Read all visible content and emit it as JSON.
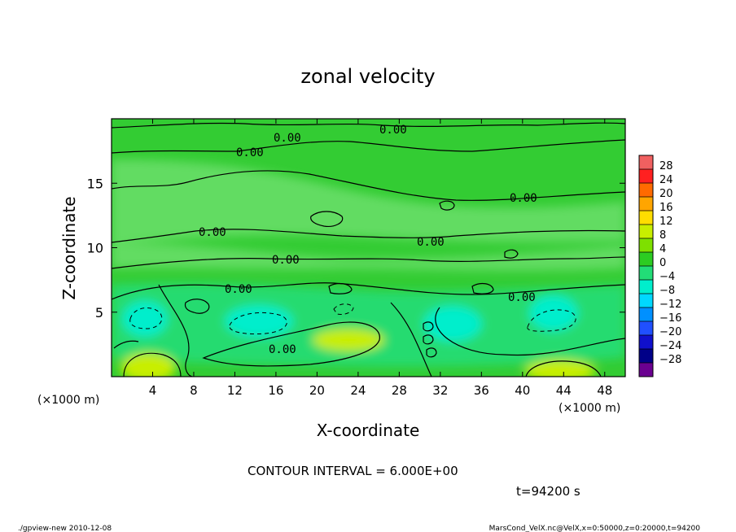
{
  "chart_data": {
    "type": "heatmap",
    "title": "zonal velocity",
    "xlabel": "X-coordinate",
    "ylabel": "Z-coordinate",
    "x_unit": "(×1000 m)",
    "y_unit": "(×1000 m)",
    "xlim": [
      0,
      50
    ],
    "ylim": [
      0,
      20
    ],
    "x_ticks": [
      4,
      8,
      12,
      16,
      20,
      24,
      28,
      32,
      36,
      40,
      44,
      48
    ],
    "y_ticks": [
      5,
      10,
      15
    ],
    "contour_interval_text": "CONTOUR INTERVAL = 6.000E+00",
    "time_text": "t=94200 s",
    "contour_label": "0.00",
    "colorbar": {
      "levels": [
        28,
        24,
        20,
        16,
        12,
        8,
        4,
        0,
        -4,
        -8,
        -12,
        -16,
        -20,
        -24,
        -28
      ],
      "colors": [
        "#f06060",
        "#ff2020",
        "#ff6a00",
        "#ffa500",
        "#ffdd00",
        "#c8ee00",
        "#7ee000",
        "#2ccc22",
        "#22dd77",
        "#00eecc",
        "#00d8ff",
        "#0090ff",
        "#2050ff",
        "#1010cc",
        "#000088",
        "#6a0090"
      ]
    },
    "field_colors": {
      "background": "#33cc33",
      "light_green": "#6ee06e",
      "cyan_green": "#22dd77",
      "cyan": "#00eecc",
      "yellow_green": "#c8ee00"
    }
  },
  "footer": {
    "left": "./gpview-new   2010-12-08",
    "right": "MarsCond_VelX.nc@VelX,x=0:50000,z=0:20000,t=94200"
  }
}
